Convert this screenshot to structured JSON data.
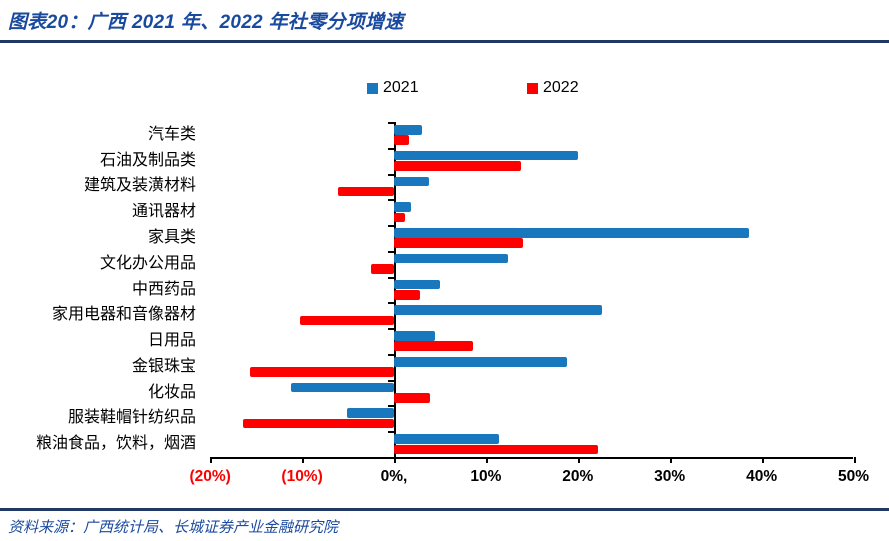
{
  "header": {
    "title": "图表20：广西 2021 年、2022 年社零分项增速"
  },
  "legend": [
    {
      "label": "2021",
      "color": "#1877BD"
    },
    {
      "label": "2022",
      "color": "#FE0000"
    }
  ],
  "chart_data": {
    "type": "bar",
    "orientation": "horizontal",
    "title": "广西 2021 年、2022 年社零分项增速",
    "unit": "%",
    "categories": [
      "汽车类",
      "石油及制品类",
      "建筑及装潢材料",
      "通讯器材",
      "家具类",
      "文化办公用品",
      "中西药品",
      "家用电器和音像器材",
      "日用品",
      "金银珠宝",
      "化妆品",
      "服装鞋帽针纺织品",
      "粮油食品，饮料，烟酒"
    ],
    "series": [
      {
        "name": "2021",
        "color": "#1877BD",
        "values": [
          3.0,
          20.0,
          3.8,
          1.9,
          38.6,
          12.4,
          5.0,
          22.6,
          4.5,
          18.8,
          -11.2,
          -5.1,
          11.4
        ]
      },
      {
        "name": "2022",
        "color": "#FE0000",
        "values": [
          1.6,
          13.8,
          -6.1,
          1.2,
          14.0,
          -2.5,
          2.8,
          -10.2,
          8.6,
          -15.7,
          3.9,
          -16.4,
          22.2
        ]
      }
    ],
    "xlim": [
      -20,
      50
    ],
    "x_ticks": [
      {
        "value": -20,
        "label": "(20%)",
        "color": "#FE0000"
      },
      {
        "value": -10,
        "label": "(10%)",
        "color": "#FE0000"
      },
      {
        "value": 0,
        "label": "0%,",
        "color": "#000000"
      },
      {
        "value": 10,
        "label": "10%",
        "color": "#000000"
      },
      {
        "value": 20,
        "label": "20%",
        "color": "#000000"
      },
      {
        "value": 30,
        "label": "30%",
        "color": "#000000"
      },
      {
        "value": 40,
        "label": "40%",
        "color": "#000000"
      },
      {
        "value": 50,
        "label": "50%",
        "color": "#000000"
      }
    ],
    "grid": false,
    "legend_position": "top"
  },
  "footer": {
    "source": "资料来源：广西统计局、长城证券产业金融研究院"
  },
  "colors": {
    "accent_blue": "#1877BD",
    "accent_red": "#FE0000",
    "heading_text": "#1A4A9E",
    "rule": "#1F3864"
  }
}
